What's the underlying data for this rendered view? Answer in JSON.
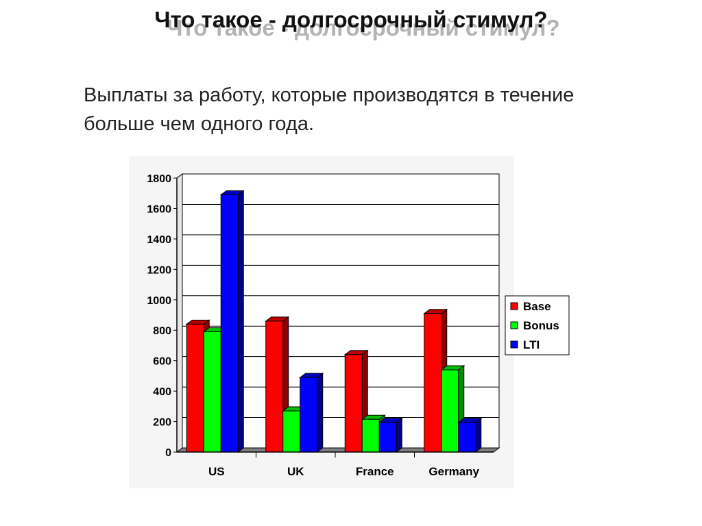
{
  "slide": {
    "title": "Что такое - долгосрочный стимул?",
    "subtitle": "Выплаты за работу, которые производятся в течение больше чем одного года."
  },
  "chart_data": {
    "type": "bar",
    "categories": [
      "US",
      "UK",
      "France",
      "Germany"
    ],
    "series": [
      {
        "name": "Base",
        "values": [
          840,
          860,
          640,
          910
        ],
        "color": "#ff0000"
      },
      {
        "name": "Bonus",
        "values": [
          790,
          270,
          215,
          540
        ],
        "color": "#00ff00"
      },
      {
        "name": "LTI",
        "values": [
          1690,
          490,
          195,
          195
        ],
        "color": "#0000ff"
      }
    ],
    "ylim": [
      0,
      1800
    ],
    "yticks": [
      "0",
      "200",
      "400",
      "600",
      "800",
      "1000",
      "1200",
      "1400",
      "1600",
      "1800"
    ],
    "grid": true,
    "legend_position": "right"
  }
}
